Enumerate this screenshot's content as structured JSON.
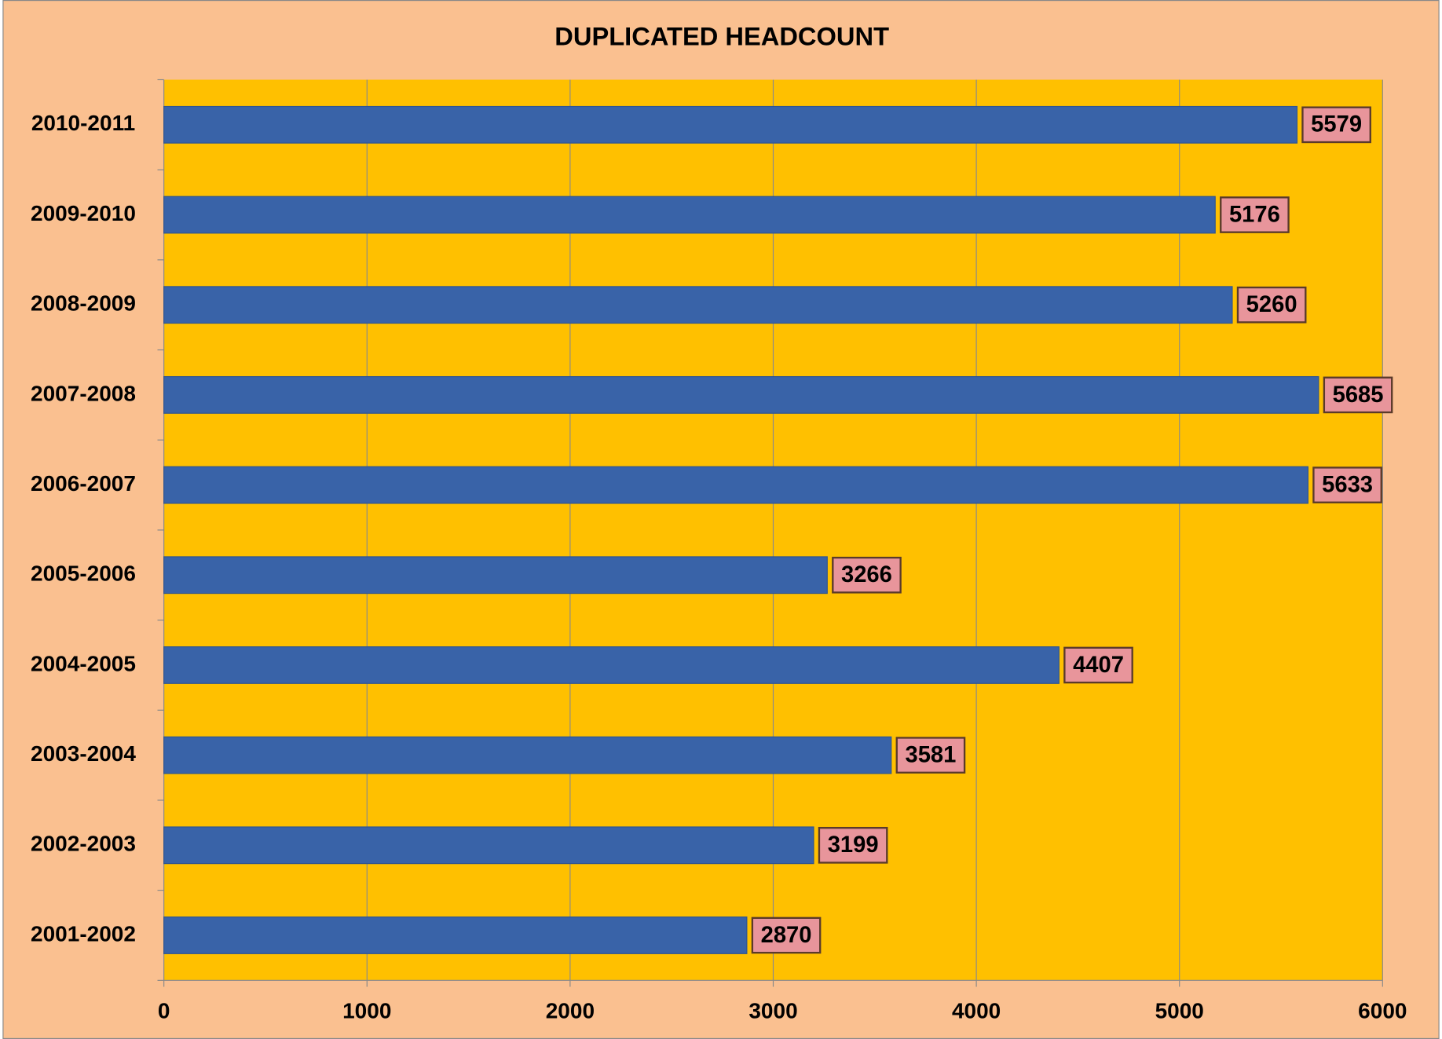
{
  "chart_data": {
    "type": "bar",
    "orientation": "horizontal",
    "title": "DUPLICATED HEADCOUNT",
    "categories": [
      "2010-2011",
      "2009-2010",
      "2008-2009",
      "2007-2008",
      "2006-2007",
      "2005-2006",
      "2004-2005",
      "2003-2004",
      "2002-2003",
      "2001-2002"
    ],
    "values": [
      5579,
      5176,
      5260,
      5685,
      5633,
      3266,
      4407,
      3581,
      3199,
      2870
    ],
    "color": "#3963a8",
    "label_color": "#e8959b",
    "plot_background": "#ffc000",
    "background": "#fac090",
    "xlim": [
      0,
      6000
    ],
    "xticks": [
      0,
      1000,
      2000,
      3000,
      4000,
      5000,
      6000
    ],
    "grid": true
  }
}
